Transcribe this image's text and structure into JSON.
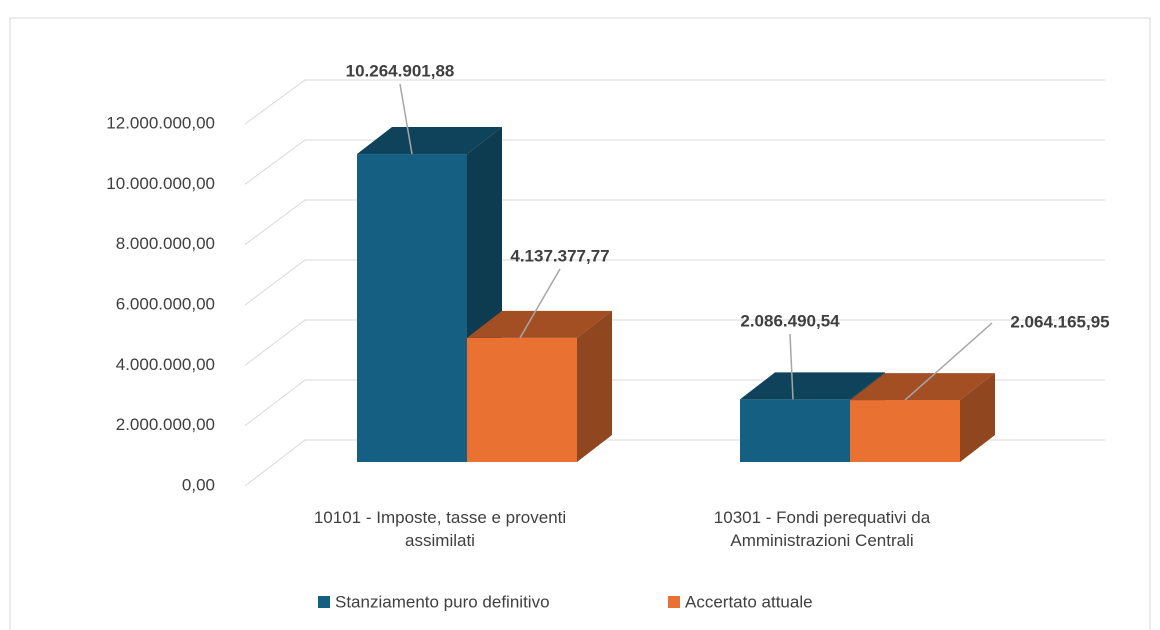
{
  "chart_data": {
    "type": "bar3d",
    "categories": [
      "10101 - Imposte, tasse e proventi assimilati",
      "10301 - Fondi perequativi da Amministrazioni Centrali"
    ],
    "series": [
      {
        "name": "Stanziamento puro definitivo",
        "color": "#156082",
        "values": [
          10264901.88,
          2086490.54
        ],
        "value_labels": [
          "10.264.901,88",
          "2.086.490,54"
        ]
      },
      {
        "name": "Accertato attuale",
        "color": "#e97132",
        "values": [
          4137377.77,
          2064165.95
        ],
        "value_labels": [
          "4.137.377,77",
          "2.064.165,95"
        ]
      }
    ],
    "ylim": [
      0,
      12000000
    ],
    "yticks": [
      {
        "value": 0,
        "label": "0,00"
      },
      {
        "value": 2000000,
        "label": "2.000.000,00"
      },
      {
        "value": 4000000,
        "label": "4.000.000,00"
      },
      {
        "value": 6000000,
        "label": "6.000.000,00"
      },
      {
        "value": 8000000,
        "label": "8.000.000,00"
      },
      {
        "value": 10000000,
        "label": "10.000.000,00"
      },
      {
        "value": 12000000,
        "label": "12.000.000,00"
      }
    ],
    "grid": true,
    "legend": "bottom"
  }
}
